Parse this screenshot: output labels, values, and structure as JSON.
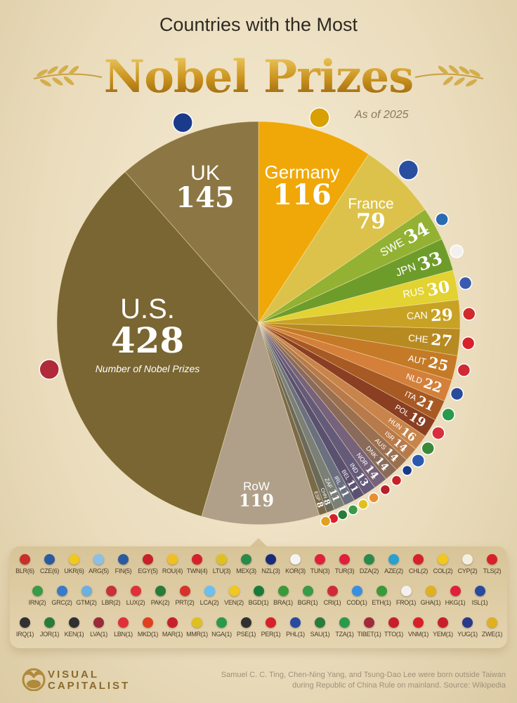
{
  "header": {
    "subtitle": "Countries with the Most",
    "title": "Nobel Prizes",
    "as_of": "As of 2025"
  },
  "chart_data": {
    "type": "pie",
    "title": "Countries with the Most Nobel Prizes",
    "annotation": "Number of Nobel Prizes",
    "start": "12 o'clock, clockwise",
    "slices": [
      {
        "label": "Germany",
        "value": 116,
        "color": "#f0a808",
        "flag": "#d8a000"
      },
      {
        "label": "France",
        "value": 79,
        "color": "#dcc24a",
        "flag": "#2a4fa0"
      },
      {
        "label": "SWE",
        "value": 34,
        "color": "#93b234",
        "flag": "#2a6ab0"
      },
      {
        "label": "JPN",
        "value": 33,
        "color": "#6e9c2a",
        "flag": "#f4f0ee"
      },
      {
        "label": "RUS",
        "value": 30,
        "color": "#e2d232",
        "flag": "#3a5ab0"
      },
      {
        "label": "CAN",
        "value": 29,
        "color": "#c8a224",
        "flag": "#d02a2a"
      },
      {
        "label": "CHE",
        "value": 27,
        "color": "#b88a22",
        "flag": "#d8202a"
      },
      {
        "label": "AUT",
        "value": 25,
        "color": "#c47a26",
        "flag": "#d02a36"
      },
      {
        "label": "NLD",
        "value": 22,
        "color": "#d4803a",
        "flag": "#2a4a9a"
      },
      {
        "label": "ITA",
        "value": 21,
        "color": "#a85a24",
        "flag": "#2a9a4a"
      },
      {
        "label": "POL",
        "value": 19,
        "color": "#8a3e22",
        "flag": "#d8303a"
      },
      {
        "label": "HUN",
        "value": 16,
        "color": "#c8844a",
        "flag": "#3a8a3a"
      },
      {
        "label": "ISR",
        "value": 14,
        "color": "#b87a4a",
        "flag": "#2a5ab0"
      },
      {
        "label": "AUS",
        "value": 14,
        "color": "#9a7050",
        "flag": "#1a3a8a"
      },
      {
        "label": "DNK",
        "value": 14,
        "color": "#8a6a5a",
        "flag": "#c8202a"
      },
      {
        "label": "NOR",
        "value": 14,
        "color": "#76627a",
        "flag": "#b8202a"
      },
      {
        "label": "IND",
        "value": 13,
        "color": "#645a7a",
        "flag": "#e89030"
      },
      {
        "label": "BEL",
        "value": 11,
        "color": "#5a5070",
        "flag": "#e0c020"
      },
      {
        "label": "IRL",
        "value": 11,
        "color": "#6a7080",
        "flag": "#3a9a4a"
      },
      {
        "label": "ZAF",
        "value": 11,
        "color": "#7a8078",
        "flag": "#2a7a3a"
      },
      {
        "label": "CHN",
        "value": 8,
        "color": "#6a6a5a",
        "flag": "#d8202a"
      },
      {
        "label": "ESP",
        "value": 8,
        "color": "#7a6a4a",
        "flag": "#e0a020"
      },
      {
        "label": "RoW",
        "value": 119,
        "color": "#b0a08a",
        "flag": null
      },
      {
        "label": "U.S.",
        "value": 428,
        "color": "#7a6632",
        "flag": "#b02a3a"
      },
      {
        "label": "UK",
        "value": 145,
        "color": "#8c7644",
        "flag": "#1a3a8a"
      }
    ]
  },
  "rest_of_world": {
    "rows": [
      [
        [
          "BLR(6)",
          "#c8302a"
        ],
        [
          "CZE(6)",
          "#2a5aa0"
        ],
        [
          "UKR(6)",
          "#f0c820"
        ],
        [
          "ARG(5)",
          "#8ac0e8"
        ],
        [
          "FIN(5)",
          "#2a5aa0"
        ],
        [
          "EGY(5)",
          "#c8202a"
        ],
        [
          "ROU(4)",
          "#f0c020"
        ],
        [
          "TWN(4)",
          "#d8202a"
        ],
        [
          "LTU(3)",
          "#e0c020"
        ],
        [
          "MEX(3)",
          "#2a8a4a"
        ],
        [
          "NZL(3)",
          "#1a2a7a"
        ],
        [
          "KOR(3)",
          "#f4f4f4"
        ],
        [
          "TUN(3)",
          "#e0203a"
        ],
        [
          "TUR(3)",
          "#e0203a"
        ],
        [
          "DZA(2)",
          "#2a8a4a"
        ],
        [
          "AZE(2)",
          "#2aa0d0"
        ],
        [
          "CHL(2)",
          "#d8202a"
        ],
        [
          "COL(2)",
          "#f0c820"
        ],
        [
          "CYP(2)",
          "#f4f0e0"
        ],
        [
          "TLS(2)",
          "#d8202a"
        ]
      ],
      [
        [
          "IRN(2)",
          "#3a9a4a"
        ],
        [
          "GRC(2)",
          "#3a7ac8"
        ],
        [
          "GTM(2)",
          "#6ab0e0"
        ],
        [
          "LBR(2)",
          "#c8303a"
        ],
        [
          "LUX(2)",
          "#e0303a"
        ],
        [
          "PAK(2)",
          "#2a7a3a"
        ],
        [
          "PRT(2)",
          "#d8302a"
        ],
        [
          "LCA(2)",
          "#6ac0f0"
        ],
        [
          "VEN(2)",
          "#f0c820"
        ],
        [
          "BGD(1)",
          "#1a7a3a"
        ],
        [
          "BRA(1)",
          "#3a9a3a"
        ],
        [
          "BGR(1)",
          "#3a9a4a"
        ],
        [
          "CRI(1)",
          "#d02a3a"
        ],
        [
          "COD(1)",
          "#3a90e0"
        ],
        [
          "ETH(1)",
          "#3a9a3a"
        ],
        [
          "FRO(1)",
          "#f4f0f0"
        ],
        [
          "GHA(1)",
          "#e0b020"
        ],
        [
          "HKG(1)",
          "#e0203a"
        ],
        [
          "ISL(1)",
          "#2a4aa0"
        ]
      ],
      [
        [
          "IRQ(1)",
          "#303030"
        ],
        [
          "JOR(1)",
          "#2a7a3a"
        ],
        [
          "KEN(1)",
          "#303030"
        ],
        [
          "LVA(1)",
          "#9a2a3a"
        ],
        [
          "LBN(1)",
          "#e0303a"
        ],
        [
          "MKD(1)",
          "#e04020"
        ],
        [
          "MAR(1)",
          "#c8202a"
        ],
        [
          "MMR(1)",
          "#e0c020"
        ],
        [
          "NGA(1)",
          "#2a9a4a"
        ],
        [
          "PSE(1)",
          "#303030"
        ],
        [
          "PER(1)",
          "#d8202a"
        ],
        [
          "PHL(1)",
          "#2a4aa0"
        ],
        [
          "SAU(1)",
          "#2a7a3a"
        ],
        [
          "TZA(1)",
          "#2a9a4a"
        ],
        [
          "TIBET(1)",
          "#a02a3a"
        ],
        [
          "TTO(1)",
          "#c8202a"
        ],
        [
          "VNM(1)",
          "#d8202a"
        ],
        [
          "YEM(1)",
          "#c8202a"
        ],
        [
          "YUG(1)",
          "#2a3a8a"
        ],
        [
          "ZWE(1)",
          "#e0b020"
        ]
      ]
    ]
  },
  "footer": {
    "logo_line1": "VISUAL",
    "logo_line2": "CAPITALIST",
    "note": "Samuel C. C. Ting, Chen-Ning Yang, and Tsung-Dao Lee were born outside Taiwan during Republic of China Rule on mainland. Source: Wikipedia"
  }
}
